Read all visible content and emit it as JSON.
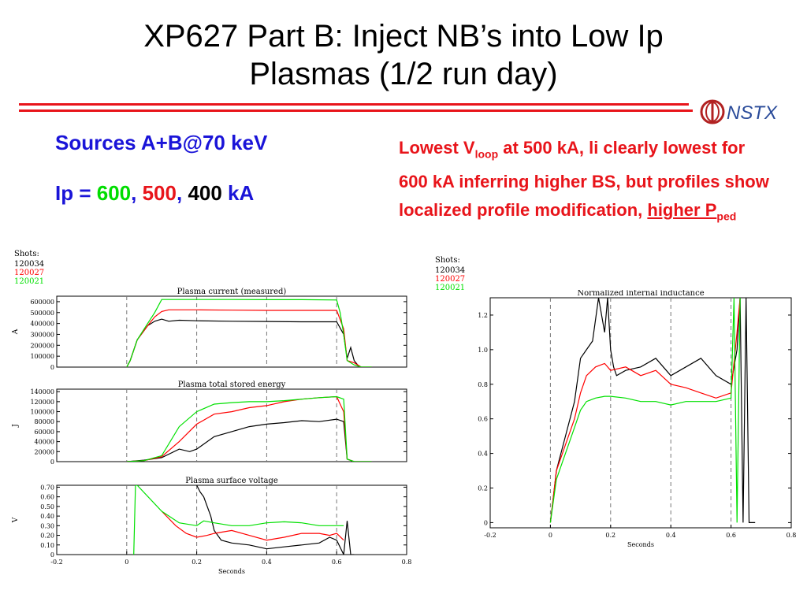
{
  "slide": {
    "title_line1": "XP627 Part B: Inject NB’s into Low Ip",
    "title_line2": "Plasmas (1/2 run day)",
    "logo_text": "NSTX",
    "sources_label": "Sources A+B@70 keV",
    "ip_prefix": "Ip = ",
    "ip_600": "600",
    "ip_sep1": ", ",
    "ip_500": "500",
    "ip_sep2": ", ",
    "ip_400": "400",
    "ip_unit": " kA",
    "note_part1": "Lowest V",
    "note_sub1": "loop",
    "note_part2": " at 500 kA, li clearly lowest for 600 kA inferring higher BS, but profiles show localized profile modification, ",
    "note_underlined": "higher P",
    "note_sub2": "ped"
  },
  "colors": {
    "title_rule": "#e8141a",
    "accent_blue": "#1a14d8",
    "note_red": "#e8141a",
    "shot_120034": "#000000",
    "shot_120027": "#ff0000",
    "shot_120021": "#00e000"
  },
  "legend_left": {
    "title": "Shots:",
    "shots": [
      "120034",
      "120027",
      "120021"
    ]
  },
  "legend_right": {
    "title": "Shots:",
    "shots": [
      "120034",
      "120027",
      "120021"
    ]
  },
  "chart_data": [
    {
      "type": "line",
      "title": "Plasma current (measured)",
      "xlabel": "",
      "ylabel": "A",
      "xlim": [
        -0.2,
        0.8
      ],
      "ylim": [
        0,
        650000
      ],
      "yticks": [
        0,
        100000,
        200000,
        300000,
        400000,
        500000,
        600000
      ],
      "xticks": [],
      "vlines": [
        0,
        0.2,
        0.4,
        0.6
      ],
      "series": [
        {
          "name": "120034",
          "color": "#000000",
          "x": [
            0,
            0.01,
            0.03,
            0.06,
            0.08,
            0.1,
            0.12,
            0.15,
            0.2,
            0.3,
            0.4,
            0.5,
            0.6,
            0.62,
            0.63,
            0.64,
            0.65,
            0.66,
            0.67,
            0.7
          ],
          "y": [
            0,
            60000,
            250000,
            380000,
            420000,
            440000,
            420000,
            430000,
            425000,
            420000,
            418000,
            415000,
            415000,
            300000,
            80000,
            180000,
            60000,
            20000,
            0,
            0
          ]
        },
        {
          "name": "120027",
          "color": "#ff0000",
          "x": [
            0,
            0.01,
            0.03,
            0.06,
            0.08,
            0.1,
            0.12,
            0.2,
            0.3,
            0.4,
            0.5,
            0.6,
            0.62,
            0.63,
            0.65,
            0.67,
            0.7
          ],
          "y": [
            0,
            60000,
            250000,
            380000,
            460000,
            510000,
            525000,
            525000,
            522000,
            520000,
            520000,
            520000,
            350000,
            60000,
            40000,
            0,
            0
          ]
        },
        {
          "name": "120021",
          "color": "#00e000",
          "x": [
            0,
            0.01,
            0.03,
            0.06,
            0.08,
            0.1,
            0.2,
            0.3,
            0.4,
            0.5,
            0.6,
            0.61,
            0.62,
            0.63,
            0.65,
            0.67,
            0.7
          ],
          "y": [
            0,
            60000,
            250000,
            400000,
            500000,
            620000,
            620000,
            620000,
            618000,
            618000,
            615000,
            500000,
            300000,
            60000,
            20000,
            0,
            0
          ]
        }
      ]
    },
    {
      "type": "line",
      "title": "Plasma total stored energy",
      "xlabel": "",
      "ylabel": "J",
      "xlim": [
        -0.2,
        0.8
      ],
      "ylim": [
        0,
        145000
      ],
      "yticks": [
        0,
        20000,
        40000,
        60000,
        80000,
        100000,
        120000,
        140000
      ],
      "xticks": [],
      "vlines": [
        0,
        0.2,
        0.4,
        0.6
      ],
      "series": [
        {
          "name": "120034",
          "color": "#000000",
          "x": [
            0,
            0.05,
            0.1,
            0.15,
            0.18,
            0.2,
            0.25,
            0.3,
            0.35,
            0.4,
            0.45,
            0.5,
            0.55,
            0.6,
            0.62,
            0.63,
            0.65,
            0.7
          ],
          "y": [
            0,
            3000,
            8000,
            25000,
            20000,
            25000,
            50000,
            60000,
            70000,
            75000,
            78000,
            82000,
            80000,
            85000,
            80000,
            5000,
            0,
            0
          ]
        },
        {
          "name": "120027",
          "color": "#ff0000",
          "x": [
            0,
            0.05,
            0.1,
            0.15,
            0.2,
            0.25,
            0.3,
            0.35,
            0.4,
            0.45,
            0.5,
            0.55,
            0.6,
            0.62,
            0.63,
            0.65,
            0.7
          ],
          "y": [
            0,
            2000,
            10000,
            40000,
            75000,
            95000,
            100000,
            108000,
            112000,
            120000,
            125000,
            128000,
            130000,
            100000,
            5000,
            0,
            0
          ]
        },
        {
          "name": "120021",
          "color": "#00e000",
          "x": [
            0,
            0.05,
            0.1,
            0.15,
            0.2,
            0.25,
            0.3,
            0.35,
            0.4,
            0.45,
            0.5,
            0.55,
            0.6,
            0.62,
            0.63,
            0.65,
            0.7
          ],
          "y": [
            0,
            2000,
            12000,
            70000,
            100000,
            115000,
            118000,
            120000,
            120000,
            122000,
            125000,
            128000,
            130000,
            125000,
            5000,
            0,
            0
          ]
        }
      ]
    },
    {
      "type": "line",
      "title": "Plasma surface voltage",
      "xlabel": "Seconds",
      "ylabel": "V",
      "xlim": [
        -0.2,
        0.8
      ],
      "ylim": [
        0,
        0.72
      ],
      "yticks": [
        0,
        0.1,
        0.2,
        0.3,
        0.4,
        0.5,
        0.6,
        0.7
      ],
      "xticks": [
        -0.2,
        0,
        0.2,
        0.4,
        0.6,
        0.8
      ],
      "vlines": [
        0,
        0.2,
        0.4,
        0.6
      ],
      "series": [
        {
          "name": "120034",
          "color": "#000000",
          "x": [
            0.2,
            0.21,
            0.22,
            0.24,
            0.25,
            0.27,
            0.3,
            0.35,
            0.4,
            0.45,
            0.5,
            0.55,
            0.58,
            0.6,
            0.62,
            0.63,
            0.64,
            0.65
          ],
          "y": [
            0.72,
            0.65,
            0.6,
            0.4,
            0.25,
            0.15,
            0.12,
            0.1,
            0.06,
            0.08,
            0.1,
            0.12,
            0.18,
            0.15,
            0.0,
            0.35,
            0.0,
            0.0
          ]
        },
        {
          "name": "120027",
          "color": "#ff0000",
          "x": [
            0.1,
            0.14,
            0.17,
            0.2,
            0.23,
            0.25,
            0.3,
            0.35,
            0.4,
            0.45,
            0.5,
            0.55,
            0.58,
            0.6,
            0.62
          ],
          "y": [
            0.45,
            0.3,
            0.22,
            0.18,
            0.2,
            0.22,
            0.25,
            0.2,
            0.15,
            0.18,
            0.22,
            0.22,
            0.2,
            0.22,
            0.15
          ]
        },
        {
          "name": "120021",
          "color": "#00e000",
          "x": [
            0.02,
            0.025,
            0.03,
            0.1,
            0.15,
            0.2,
            0.22,
            0.25,
            0.3,
            0.35,
            0.4,
            0.45,
            0.5,
            0.55,
            0.6,
            0.62
          ],
          "y": [
            0.0,
            0.72,
            0.72,
            0.45,
            0.33,
            0.3,
            0.35,
            0.33,
            0.3,
            0.3,
            0.33,
            0.34,
            0.33,
            0.3,
            0.3,
            0.3
          ]
        }
      ]
    },
    {
      "type": "line",
      "title": "Normalized internal inductance",
      "xlabel": "Seconds",
      "ylabel": "",
      "xlim": [
        -0.2,
        0.8
      ],
      "ylim": [
        -0.03,
        1.3
      ],
      "yticks": [
        0,
        0.2,
        0.4,
        0.6,
        0.8,
        1.0,
        1.2
      ],
      "xticks": [
        -0.2,
        0,
        0.2,
        0.4,
        0.6,
        0.8
      ],
      "vlines": [
        0,
        0.2,
        0.4,
        0.6
      ],
      "series": [
        {
          "name": "120034",
          "color": "#000000",
          "x": [
            0.0,
            0.02,
            0.05,
            0.08,
            0.1,
            0.12,
            0.14,
            0.16,
            0.18,
            0.19,
            0.2,
            0.21,
            0.22,
            0.25,
            0.3,
            0.35,
            0.4,
            0.45,
            0.5,
            0.55,
            0.6,
            0.62,
            0.63,
            0.64,
            0.65,
            0.66,
            0.68
          ],
          "y": [
            0.0,
            0.3,
            0.5,
            0.7,
            0.95,
            1.0,
            1.05,
            1.3,
            1.1,
            1.3,
            1.0,
            0.9,
            0.85,
            0.88,
            0.9,
            0.95,
            0.85,
            0.9,
            0.95,
            0.85,
            0.8,
            1.0,
            1.3,
            0.0,
            1.3,
            0.0,
            0.0
          ]
        },
        {
          "name": "120027",
          "color": "#ff0000",
          "x": [
            0.0,
            0.02,
            0.05,
            0.08,
            0.1,
            0.12,
            0.15,
            0.18,
            0.2,
            0.25,
            0.3,
            0.35,
            0.4,
            0.45,
            0.5,
            0.55,
            0.6,
            0.62,
            0.63
          ],
          "y": [
            0.0,
            0.3,
            0.45,
            0.6,
            0.75,
            0.85,
            0.9,
            0.92,
            0.88,
            0.9,
            0.85,
            0.88,
            0.8,
            0.78,
            0.75,
            0.72,
            0.75,
            1.1,
            1.3
          ]
        },
        {
          "name": "120021",
          "color": "#00e000",
          "x": [
            0.0,
            0.02,
            0.05,
            0.08,
            0.1,
            0.12,
            0.15,
            0.18,
            0.2,
            0.25,
            0.3,
            0.35,
            0.4,
            0.45,
            0.5,
            0.55,
            0.6,
            0.61,
            0.62,
            0.63
          ],
          "y": [
            0.0,
            0.25,
            0.4,
            0.55,
            0.65,
            0.7,
            0.72,
            0.73,
            0.73,
            0.72,
            0.7,
            0.7,
            0.68,
            0.7,
            0.7,
            0.7,
            0.72,
            1.3,
            0.0,
            1.3
          ]
        }
      ]
    }
  ]
}
